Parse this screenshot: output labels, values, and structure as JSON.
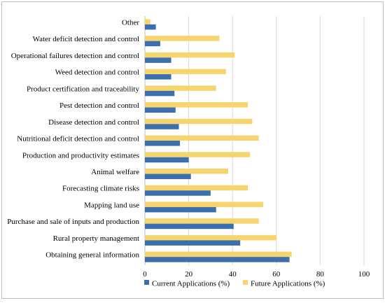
{
  "chart_data": {
    "type": "bar",
    "orientation": "horizontal",
    "categories": [
      "Other",
      "Water deficit detection and control",
      "Operational failures detection and control",
      "Weed detection and control",
      "Product certification and traceability",
      "Pest detection and control",
      "Disease detection and control",
      "Nutritional deficit detection and control",
      "Production and productivity estimates",
      "Animal welfare",
      "Forecasting climate risks",
      "Mapping land use",
      "Purchase and sale of inputs and production",
      "Rural property management",
      "Obtaining general information"
    ],
    "series": [
      {
        "name": "Current Applications (%)",
        "color": "#3b6fae",
        "values": [
          5,
          7,
          12,
          12,
          13.5,
          14,
          15.5,
          16,
          20,
          21,
          30,
          32.5,
          40.5,
          43.5,
          66
        ]
      },
      {
        "name": "Future Applications (%)",
        "color": "#f6d46e",
        "values": [
          2.5,
          34,
          41,
          37,
          32.5,
          47,
          49,
          52,
          48,
          38,
          47,
          54,
          52,
          60,
          67
        ]
      }
    ],
    "xlim": [
      0,
      100
    ],
    "xticks": [
      "0",
      "20",
      "40",
      "60",
      "80",
      "100"
    ],
    "grid": "vertical",
    "legend_position": "bottom"
  }
}
